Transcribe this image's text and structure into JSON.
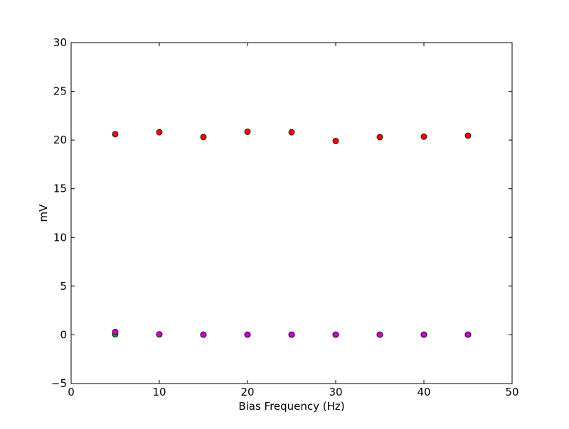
{
  "chart_data": {
    "type": "scatter",
    "title": "",
    "xlabel": "Bias Frequency (Hz)",
    "ylabel": "mV",
    "xlim": [
      0,
      50
    ],
    "ylim": [
      -5,
      30
    ],
    "x_ticks": [
      0,
      10,
      20,
      30,
      40,
      50
    ],
    "y_ticks": [
      -5,
      0,
      5,
      10,
      15,
      20,
      25,
      30
    ],
    "grid": false,
    "legend": "none",
    "series": [
      {
        "color": "#ff0000",
        "marker": "circle",
        "x": [
          5,
          10,
          15,
          20,
          25,
          30,
          35,
          40,
          45
        ],
        "y": [
          20.6,
          20.8,
          20.3,
          20.85,
          20.8,
          19.9,
          20.3,
          20.35,
          20.45
        ]
      },
      {
        "color": "#00aa00",
        "marker": "circle",
        "x": [
          5,
          10,
          15,
          20,
          25,
          30,
          35,
          40,
          45
        ],
        "y": [
          0.05,
          0.05,
          0.02,
          0.02,
          0.02,
          0.02,
          0.02,
          0.02,
          0.02
        ]
      },
      {
        "color": "#cc00cc",
        "marker": "circle",
        "x": [
          5,
          10,
          15,
          20,
          25,
          30,
          35,
          40,
          45
        ],
        "y": [
          0.3,
          0.05,
          0.02,
          0.02,
          0.02,
          0.02,
          0.02,
          0.02,
          0.02
        ]
      }
    ]
  }
}
